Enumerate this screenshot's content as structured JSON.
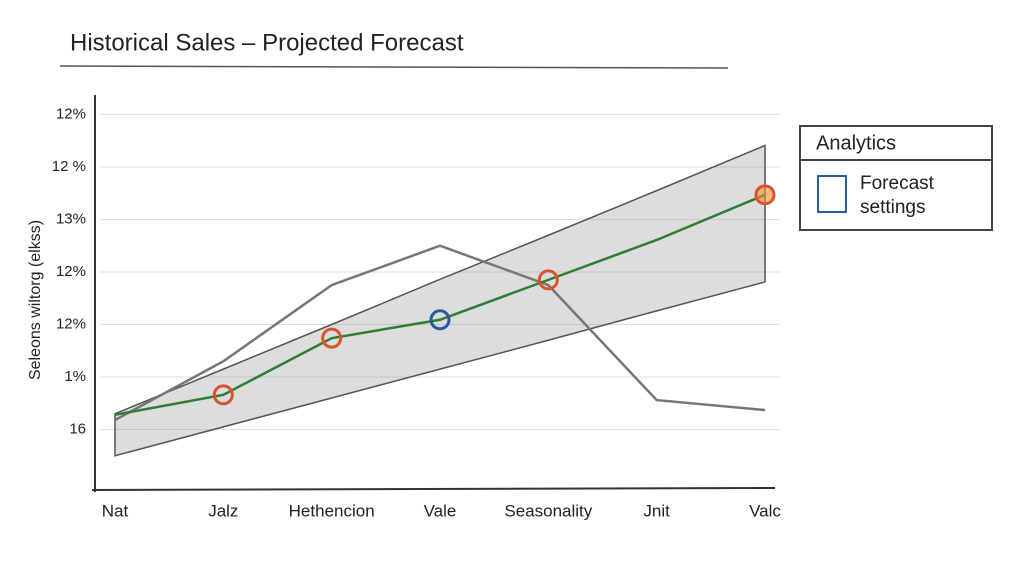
{
  "chart_data": {
    "type": "line",
    "title": "Historical Sales – Projected Forecast",
    "y_label": "Seleons wiltorg (elkss)",
    "categories": [
      "Nat",
      "Jalz",
      "Hethencion",
      "Vale",
      "Seasonality",
      "Jnit",
      "Valc"
    ],
    "series": [
      {
        "color": "#2e7d32",
        "values": [
          1.28,
          1.66,
          2.74,
          3.09,
          3.85,
          4.61,
          5.47
        ]
      },
      {
        "color": "#777777",
        "values": [
          1.18,
          2.3,
          3.75,
          4.5,
          3.75,
          1.56,
          1.37
        ]
      }
    ],
    "band": {
      "color": "#9e9e9e",
      "upper": [
        1.3,
        2.15,
        3.0,
        3.86,
        4.7,
        5.55,
        6.41
      ],
      "lower": [
        0.5,
        1.05,
        1.6,
        2.15,
        2.7,
        3.26,
        3.81
      ]
    },
    "ylim": [
      0,
      7.3
    ],
    "yticks": [
      {
        "value": 7,
        "label": "12%"
      },
      {
        "value": 6,
        "label": "12 %"
      },
      {
        "value": 5,
        "label": "13%"
      },
      {
        "value": 4,
        "label": "12%"
      },
      {
        "value": 3,
        "label": "12%"
      },
      {
        "value": 2,
        "label": "1%"
      },
      {
        "value": 1,
        "label": "16"
      }
    ],
    "grid": true,
    "panel": {
      "title": "Analytics",
      "item": "Forecast settings"
    }
  }
}
